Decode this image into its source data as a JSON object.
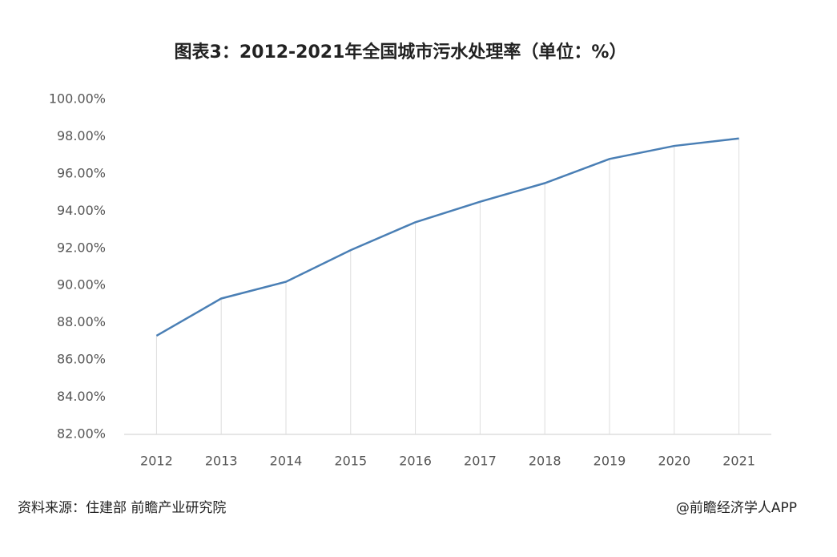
{
  "chart_data": {
    "type": "line",
    "title": "图表3：2012-2021年全国城市污水处理率（单位：%）",
    "categories": [
      "2012",
      "2013",
      "2014",
      "2015",
      "2016",
      "2017",
      "2018",
      "2019",
      "2020",
      "2021"
    ],
    "values": [
      87.3,
      89.3,
      90.2,
      91.9,
      93.4,
      94.5,
      95.5,
      96.8,
      97.5,
      97.9
    ],
    "color": "#4a7fb5",
    "ylim": [
      82,
      100
    ],
    "yticks": [
      {
        "value": 82,
        "label": "82.00%"
      },
      {
        "value": 84,
        "label": "84.00%"
      },
      {
        "value": 86,
        "label": "86.00%"
      },
      {
        "value": 88,
        "label": "88.00%"
      },
      {
        "value": 90,
        "label": "90.00%"
      },
      {
        "value": 92,
        "label": "92.00%"
      },
      {
        "value": 94,
        "label": "94.00%"
      },
      {
        "value": 96,
        "label": "96.00%"
      },
      {
        "value": 98,
        "label": "98.00%"
      },
      {
        "value": 100,
        "label": "100.00%"
      }
    ],
    "source": "资料来源：住建部 前瞻产业研究院",
    "credit": "@前瞻经济学人APP"
  }
}
